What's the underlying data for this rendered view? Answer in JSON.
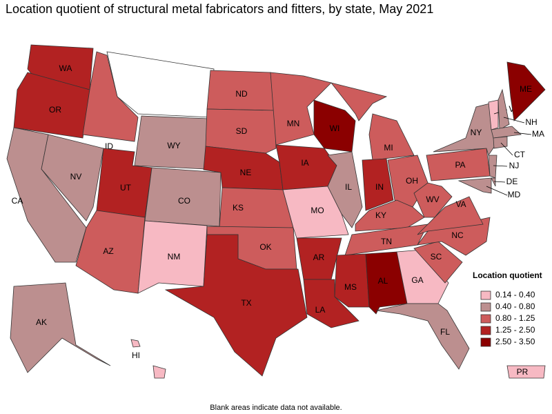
{
  "title": "Location quotient of structural metal fabricators and fitters, by state, May 2021",
  "legend": {
    "title": "Location quotient",
    "items": [
      {
        "label": "0.14 - 0.40",
        "color": "#f7b9c3"
      },
      {
        "label": "0.40 - 0.80",
        "color": "#bc8f8f"
      },
      {
        "label": "0.80 - 1.25",
        "color": "#cd5c5c"
      },
      {
        "label": "1.25 - 2.50",
        "color": "#b22222"
      },
      {
        "label": "2.50 - 3.50",
        "color": "#8b0000"
      }
    ]
  },
  "footnote": "Blank areas indicate data not available.",
  "states": [
    {
      "abbr": "WA",
      "color": "#b22222"
    },
    {
      "abbr": "OR",
      "color": "#b22222"
    },
    {
      "abbr": "CA",
      "color": "#bc8f8f"
    },
    {
      "abbr": "NV",
      "color": "#bc8f8f"
    },
    {
      "abbr": "ID",
      "color": "#cd5c5c"
    },
    {
      "abbr": "WY",
      "color": "#bc8f8f"
    },
    {
      "abbr": "UT",
      "color": "#b22222"
    },
    {
      "abbr": "AZ",
      "color": "#cd5c5c"
    },
    {
      "abbr": "CO",
      "color": "#bc8f8f"
    },
    {
      "abbr": "NM",
      "color": "#f7b9c3"
    },
    {
      "abbr": "ND",
      "color": "#cd5c5c"
    },
    {
      "abbr": "SD",
      "color": "#cd5c5c"
    },
    {
      "abbr": "NE",
      "color": "#b22222"
    },
    {
      "abbr": "KS",
      "color": "#cd5c5c"
    },
    {
      "abbr": "OK",
      "color": "#cd5c5c"
    },
    {
      "abbr": "TX",
      "color": "#b22222"
    },
    {
      "abbr": "MN",
      "color": "#cd5c5c"
    },
    {
      "abbr": "IA",
      "color": "#b22222"
    },
    {
      "abbr": "MO",
      "color": "#f7b9c3"
    },
    {
      "abbr": "AR",
      "color": "#b22222"
    },
    {
      "abbr": "LA",
      "color": "#b22222"
    },
    {
      "abbr": "WI",
      "color": "#8b0000"
    },
    {
      "abbr": "IL",
      "color": "#bc8f8f"
    },
    {
      "abbr": "MI",
      "color": "#cd5c5c"
    },
    {
      "abbr": "IN",
      "color": "#b22222"
    },
    {
      "abbr": "OH",
      "color": "#cd5c5c"
    },
    {
      "abbr": "KY",
      "color": "#cd5c5c"
    },
    {
      "abbr": "TN",
      "color": "#cd5c5c"
    },
    {
      "abbr": "MS",
      "color": "#b22222"
    },
    {
      "abbr": "AL",
      "color": "#8b0000"
    },
    {
      "abbr": "GA",
      "color": "#f7b9c3"
    },
    {
      "abbr": "FL",
      "color": "#bc8f8f"
    },
    {
      "abbr": "SC",
      "color": "#cd5c5c"
    },
    {
      "abbr": "NC",
      "color": "#cd5c5c"
    },
    {
      "abbr": "VA",
      "color": "#cd5c5c"
    },
    {
      "abbr": "WV",
      "color": "#cd5c5c"
    },
    {
      "abbr": "PA",
      "color": "#cd5c5c"
    },
    {
      "abbr": "NY",
      "color": "#bc8f8f"
    },
    {
      "abbr": "VT",
      "color": "#f7b9c3"
    },
    {
      "abbr": "NH",
      "color": "#bc8f8f"
    },
    {
      "abbr": "ME",
      "color": "#8b0000"
    },
    {
      "abbr": "MA",
      "color": "#bc8f8f"
    },
    {
      "abbr": "CT",
      "color": "#bc8f8f"
    },
    {
      "abbr": "NJ",
      "color": "#bc8f8f"
    },
    {
      "abbr": "DE",
      "color": "#bc8f8f"
    },
    {
      "abbr": "MD",
      "color": "#bc8f8f"
    },
    {
      "abbr": "AK",
      "color": "#bc8f8f"
    },
    {
      "abbr": "HI",
      "color": "#f7b9c3"
    },
    {
      "abbr": "PR",
      "color": "#f7b9c3"
    }
  ]
}
